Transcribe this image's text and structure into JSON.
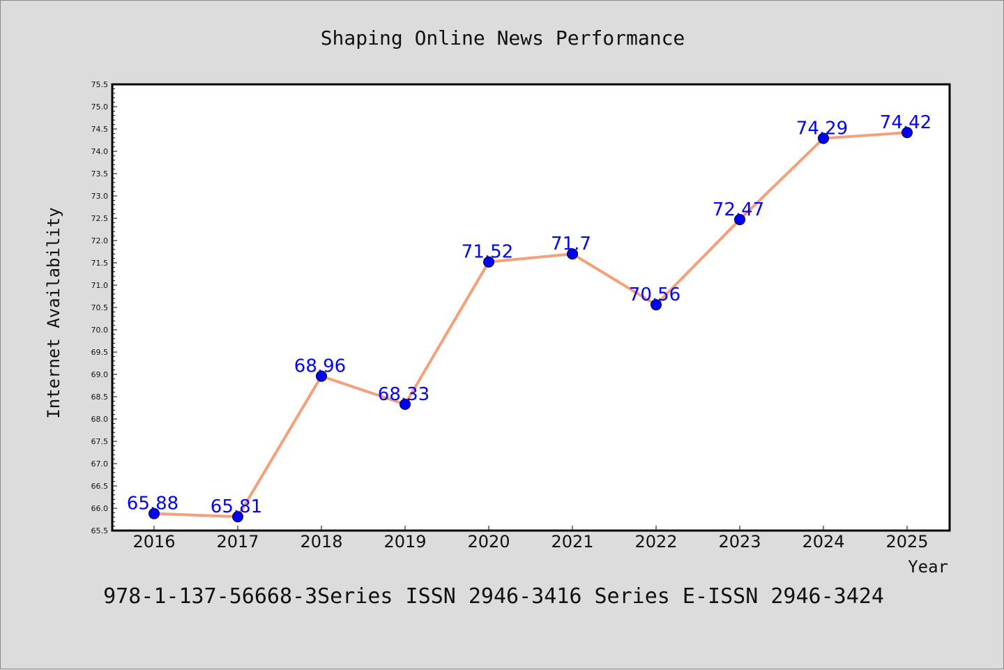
{
  "chart_data": {
    "type": "line",
    "title": "Shaping Online News Performance",
    "xlabel": "Year",
    "ylabel": "Internet Availability",
    "categories": [
      "2016",
      "2017",
      "2018",
      "2019",
      "2020",
      "2021",
      "2022",
      "2023",
      "2024",
      "2025"
    ],
    "series": [
      {
        "values": [
          65.88,
          65.81,
          68.96,
          68.33,
          71.52,
          71.7,
          70.56,
          72.47,
          74.29,
          74.42
        ],
        "labels": [
          "65.88",
          "65.81",
          "68.96",
          "68.33",
          "71.52",
          "71.7",
          "70.56",
          "72.47",
          "74.29",
          "74.42"
        ]
      }
    ],
    "ylim": [
      65.5,
      75.5
    ],
    "yticks": [
      "65.5",
      "66.0",
      "66.5",
      "67.0",
      "67.5",
      "68.0",
      "68.5",
      "69.0",
      "69.5",
      "70.0",
      "70.5",
      "71.0",
      "71.5",
      "72.0",
      "72.5",
      "73.0",
      "73.5",
      "74.0",
      "74.5",
      "75.0",
      "75.5"
    ],
    "grid": false,
    "legend": "none",
    "colors": {
      "line": "#f4a07a",
      "marker": "#0000ff",
      "data_label": "#0000ff",
      "background": "#dcdcdc",
      "plot_area": "#ffffff"
    }
  },
  "footer": {
    "text": "978-1-137-56668-3Series ISSN 2946-3416 Series E-ISSN 2946-3424"
  }
}
